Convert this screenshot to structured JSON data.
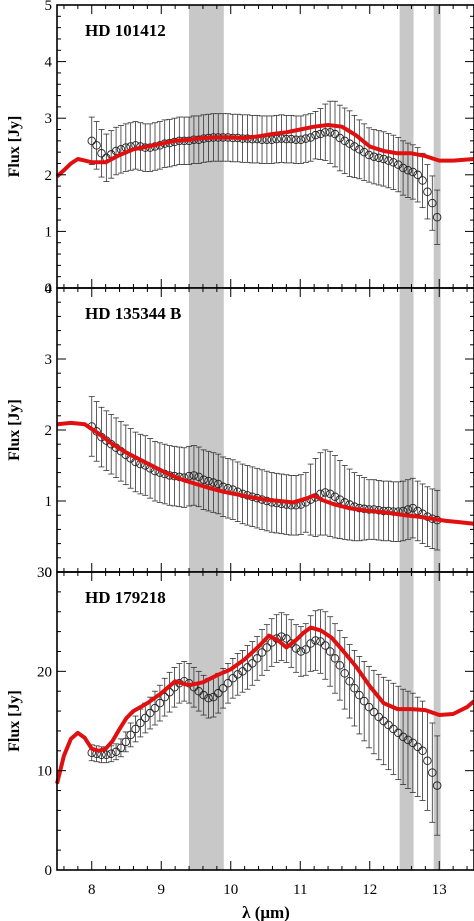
{
  "xlabel": "λ (μm)",
  "chart_data": [
    {
      "type": "line",
      "title": "HD 101412",
      "ylabel": "Flux [Jy]",
      "xlim": [
        7.5,
        13.5
      ],
      "ylim": [
        0,
        5
      ],
      "xticks": [
        "8",
        "9",
        "10",
        "11",
        "12",
        "13"
      ],
      "yticks": [
        "0",
        "1",
        "2",
        "3",
        "4",
        "5"
      ],
      "shaded_bands": [
        [
          9.4,
          9.9
        ],
        [
          12.43,
          12.63
        ],
        [
          12.92,
          13.02
        ]
      ],
      "model": {
        "color": "#e01010",
        "x": [
          7.5,
          7.6,
          7.7,
          7.8,
          7.9,
          8.0,
          8.2,
          8.4,
          8.6,
          8.8,
          9.0,
          9.2,
          9.4,
          9.6,
          9.8,
          10.0,
          10.2,
          10.4,
          10.6,
          10.8,
          11.0,
          11.2,
          11.4,
          11.6,
          11.8,
          12.0,
          12.2,
          12.4,
          12.6,
          12.8,
          13.0,
          13.2,
          13.5
        ],
        "y": [
          1.97,
          2.08,
          2.2,
          2.28,
          2.25,
          2.22,
          2.22,
          2.35,
          2.45,
          2.5,
          2.55,
          2.6,
          2.62,
          2.65,
          2.66,
          2.66,
          2.65,
          2.68,
          2.72,
          2.75,
          2.8,
          2.85,
          2.88,
          2.85,
          2.7,
          2.5,
          2.42,
          2.38,
          2.38,
          2.33,
          2.25,
          2.25,
          2.28
        ]
      },
      "observed": {
        "x": [
          8.0,
          8.07,
          8.14,
          8.21,
          8.28,
          8.35,
          8.42,
          8.49,
          8.56,
          8.63,
          8.7,
          8.77,
          8.84,
          8.91,
          8.98,
          9.05,
          9.12,
          9.19,
          9.26,
          9.33,
          9.4,
          9.47,
          9.54,
          9.61,
          9.68,
          9.75,
          9.82,
          9.89,
          9.96,
          10.03,
          10.1,
          10.17,
          10.24,
          10.31,
          10.38,
          10.45,
          10.52,
          10.59,
          10.66,
          10.73,
          10.8,
          10.87,
          10.94,
          11.01,
          11.08,
          11.15,
          11.22,
          11.29,
          11.36,
          11.43,
          11.5,
          11.57,
          11.64,
          11.71,
          11.78,
          11.85,
          11.92,
          11.99,
          12.06,
          12.13,
          12.2,
          12.27,
          12.34,
          12.41,
          12.48,
          12.55,
          12.62,
          12.69,
          12.76,
          12.83,
          12.9,
          12.97
        ],
        "y": [
          2.6,
          2.52,
          2.38,
          2.3,
          2.36,
          2.42,
          2.45,
          2.48,
          2.5,
          2.52,
          2.5,
          2.48,
          2.48,
          2.5,
          2.52,
          2.55,
          2.56,
          2.58,
          2.6,
          2.6,
          2.6,
          2.62,
          2.62,
          2.64,
          2.65,
          2.66,
          2.66,
          2.66,
          2.66,
          2.65,
          2.65,
          2.64,
          2.64,
          2.63,
          2.63,
          2.62,
          2.62,
          2.62,
          2.63,
          2.64,
          2.63,
          2.63,
          2.62,
          2.62,
          2.64,
          2.66,
          2.7,
          2.72,
          2.75,
          2.75,
          2.72,
          2.65,
          2.6,
          2.55,
          2.5,
          2.45,
          2.4,
          2.35,
          2.32,
          2.3,
          2.28,
          2.25,
          2.22,
          2.18,
          2.12,
          2.08,
          2.05,
          2.0,
          1.9,
          1.7,
          1.5,
          1.25
        ],
        "yerr": [
          0.42,
          0.42,
          0.42,
          0.42,
          0.42,
          0.42,
          0.42,
          0.42,
          0.42,
          0.42,
          0.42,
          0.42,
          0.42,
          0.42,
          0.42,
          0.42,
          0.42,
          0.42,
          0.42,
          0.42,
          0.42,
          0.42,
          0.42,
          0.42,
          0.42,
          0.42,
          0.42,
          0.42,
          0.42,
          0.42,
          0.42,
          0.42,
          0.42,
          0.42,
          0.42,
          0.42,
          0.42,
          0.42,
          0.42,
          0.42,
          0.42,
          0.42,
          0.42,
          0.42,
          0.42,
          0.42,
          0.42,
          0.45,
          0.5,
          0.55,
          0.58,
          0.58,
          0.58,
          0.58,
          0.55,
          0.52,
          0.5,
          0.48,
          0.48,
          0.48,
          0.48,
          0.48,
          0.48,
          0.48,
          0.48,
          0.48,
          0.48,
          0.48,
          0.48,
          0.48,
          0.48,
          0.48
        ]
      }
    },
    {
      "type": "line",
      "title": "HD 135344 B",
      "ylabel": "Flux [Jy]",
      "xlim": [
        7.5,
        13.5
      ],
      "ylim": [
        0,
        4
      ],
      "xticks": [
        "8",
        "9",
        "10",
        "11",
        "12",
        "13"
      ],
      "yticks": [
        "0",
        "1",
        "2",
        "3",
        "4"
      ],
      "shaded_bands": [
        [
          9.4,
          9.9
        ],
        [
          12.43,
          12.63
        ],
        [
          12.92,
          13.02
        ]
      ],
      "model": {
        "color": "#e01010",
        "x": [
          7.5,
          7.7,
          7.9,
          8.1,
          8.3,
          8.5,
          8.7,
          8.9,
          9.1,
          9.3,
          9.5,
          9.7,
          9.9,
          10.1,
          10.3,
          10.5,
          10.7,
          10.9,
          11.1,
          11.2,
          11.3,
          11.5,
          11.7,
          11.9,
          12.1,
          12.3,
          12.5,
          12.7,
          12.9,
          13.1,
          13.3,
          13.5
        ],
        "y": [
          2.08,
          2.1,
          2.08,
          1.95,
          1.8,
          1.68,
          1.58,
          1.48,
          1.38,
          1.3,
          1.24,
          1.18,
          1.13,
          1.09,
          1.05,
          1.02,
          1.0,
          0.98,
          1.04,
          1.08,
          1.02,
          0.95,
          0.9,
          0.87,
          0.85,
          0.83,
          0.8,
          0.78,
          0.75,
          0.72,
          0.7,
          0.68
        ]
      },
      "observed": {
        "x": [
          8.0,
          8.07,
          8.14,
          8.21,
          8.28,
          8.35,
          8.42,
          8.49,
          8.56,
          8.63,
          8.7,
          8.77,
          8.84,
          8.91,
          8.98,
          9.05,
          9.12,
          9.19,
          9.26,
          9.33,
          9.4,
          9.47,
          9.54,
          9.61,
          9.68,
          9.75,
          9.82,
          9.89,
          9.96,
          10.03,
          10.1,
          10.17,
          10.24,
          10.31,
          10.38,
          10.45,
          10.52,
          10.59,
          10.66,
          10.73,
          10.8,
          10.87,
          10.94,
          11.01,
          11.08,
          11.15,
          11.22,
          11.29,
          11.36,
          11.43,
          11.5,
          11.57,
          11.64,
          11.71,
          11.78,
          11.85,
          11.92,
          11.99,
          12.06,
          12.13,
          12.2,
          12.27,
          12.34,
          12.41,
          12.48,
          12.55,
          12.62,
          12.69,
          12.76,
          12.83,
          12.9,
          12.97
        ],
        "y": [
          2.05,
          1.98,
          1.9,
          1.85,
          1.8,
          1.75,
          1.7,
          1.65,
          1.6,
          1.55,
          1.52,
          1.5,
          1.46,
          1.42,
          1.4,
          1.38,
          1.36,
          1.35,
          1.34,
          1.33,
          1.35,
          1.36,
          1.34,
          1.3,
          1.28,
          1.26,
          1.24,
          1.2,
          1.18,
          1.16,
          1.13,
          1.1,
          1.08,
          1.06,
          1.04,
          1.02,
          1.0,
          0.98,
          0.97,
          0.96,
          0.95,
          0.94,
          0.94,
          0.95,
          0.98,
          1.02,
          1.05,
          1.1,
          1.12,
          1.1,
          1.06,
          1.02,
          0.98,
          0.95,
          0.92,
          0.9,
          0.89,
          0.88,
          0.88,
          0.87,
          0.86,
          0.86,
          0.85,
          0.85,
          0.86,
          0.88,
          0.9,
          0.86,
          0.82,
          0.78,
          0.75,
          0.73
        ],
        "yerr": [
          0.42,
          0.42,
          0.42,
          0.42,
          0.42,
          0.42,
          0.42,
          0.42,
          0.42,
          0.42,
          0.42,
          0.42,
          0.42,
          0.42,
          0.42,
          0.42,
          0.42,
          0.42,
          0.42,
          0.42,
          0.42,
          0.42,
          0.42,
          0.42,
          0.42,
          0.42,
          0.42,
          0.42,
          0.42,
          0.42,
          0.42,
          0.42,
          0.42,
          0.42,
          0.42,
          0.42,
          0.42,
          0.42,
          0.42,
          0.42,
          0.42,
          0.42,
          0.42,
          0.42,
          0.42,
          0.5,
          0.55,
          0.58,
          0.6,
          0.6,
          0.58,
          0.55,
          0.52,
          0.5,
          0.48,
          0.46,
          0.44,
          0.42,
          0.42,
          0.42,
          0.42,
          0.42,
          0.42,
          0.42,
          0.42,
          0.42,
          0.42,
          0.42,
          0.42,
          0.42,
          0.42,
          0.42
        ]
      }
    },
    {
      "type": "line",
      "title": "HD 179218",
      "ylabel": "Flux [Jy]",
      "xlim": [
        7.5,
        13.5
      ],
      "ylim": [
        0,
        30
      ],
      "xticks": [
        "8",
        "9",
        "10",
        "11",
        "12",
        "13"
      ],
      "yticks": [
        "0",
        "10",
        "20",
        "30"
      ],
      "shaded_bands": [
        [
          9.4,
          9.9
        ],
        [
          12.43,
          12.63
        ],
        [
          12.92,
          13.02
        ]
      ],
      "model": {
        "color": "#e01010",
        "x": [
          7.5,
          7.6,
          7.7,
          7.8,
          7.9,
          8.0,
          8.1,
          8.2,
          8.3,
          8.4,
          8.5,
          8.6,
          8.7,
          8.8,
          9.0,
          9.2,
          9.4,
          9.6,
          9.8,
          10.0,
          10.2,
          10.4,
          10.55,
          10.7,
          10.8,
          10.95,
          11.05,
          11.15,
          11.3,
          11.45,
          11.6,
          11.8,
          12.0,
          12.2,
          12.4,
          12.6,
          12.8,
          13.0,
          13.2,
          13.4,
          13.5
        ],
        "y": [
          8.7,
          11.5,
          13.2,
          13.8,
          13.3,
          12.2,
          12.0,
          12.2,
          13.0,
          14.2,
          15.3,
          16.0,
          16.4,
          16.8,
          17.8,
          19.0,
          18.6,
          18.9,
          19.6,
          20.2,
          21.2,
          22.5,
          23.6,
          23.0,
          22.4,
          23.2,
          23.9,
          24.4,
          24.1,
          23.4,
          22.2,
          20.5,
          18.5,
          16.8,
          16.2,
          16.2,
          16.1,
          15.6,
          15.7,
          16.4,
          17.0
        ]
      },
      "observed": {
        "x": [
          8.0,
          8.07,
          8.14,
          8.21,
          8.28,
          8.35,
          8.42,
          8.49,
          8.56,
          8.63,
          8.7,
          8.77,
          8.84,
          8.91,
          8.98,
          9.05,
          9.12,
          9.19,
          9.26,
          9.33,
          9.4,
          9.47,
          9.54,
          9.61,
          9.68,
          9.75,
          9.82,
          9.89,
          9.96,
          10.03,
          10.1,
          10.17,
          10.24,
          10.31,
          10.38,
          10.45,
          10.52,
          10.59,
          10.66,
          10.73,
          10.8,
          10.87,
          10.94,
          11.01,
          11.08,
          11.15,
          11.22,
          11.29,
          11.36,
          11.43,
          11.5,
          11.57,
          11.64,
          11.71,
          11.78,
          11.85,
          11.92,
          11.99,
          12.06,
          12.13,
          12.2,
          12.27,
          12.34,
          12.41,
          12.48,
          12.55,
          12.62,
          12.69,
          12.76,
          12.83,
          12.9,
          12.97
        ],
        "y": [
          11.8,
          11.7,
          11.6,
          11.6,
          11.7,
          11.9,
          12.3,
          12.9,
          13.6,
          14.2,
          14.8,
          15.3,
          15.8,
          16.3,
          16.8,
          17.4,
          17.9,
          18.4,
          18.8,
          19.0,
          18.8,
          18.4,
          18.0,
          17.6,
          17.3,
          17.4,
          17.8,
          18.3,
          18.8,
          19.3,
          19.7,
          20.0,
          20.4,
          20.8,
          21.3,
          21.9,
          22.4,
          22.9,
          23.3,
          23.5,
          23.3,
          22.8,
          22.3,
          22.0,
          22.2,
          22.8,
          23.1,
          23.0,
          22.6,
          22.0,
          21.3,
          20.6,
          19.8,
          19.0,
          18.3,
          17.6,
          17.0,
          16.4,
          15.9,
          15.4,
          15.0,
          14.6,
          14.2,
          13.8,
          13.4,
          13.1,
          12.8,
          12.4,
          12.0,
          11.0,
          9.8,
          8.5
        ],
        "yerr": [
          0.8,
          0.8,
          0.8,
          0.8,
          0.8,
          0.8,
          0.9,
          1.0,
          1.2,
          1.3,
          1.4,
          1.5,
          1.6,
          1.7,
          1.8,
          1.9,
          2.0,
          2.0,
          2.0,
          2.0,
          2.0,
          2.0,
          2.0,
          2.0,
          2.0,
          2.0,
          2.0,
          2.0,
          2.0,
          2.0,
          2.1,
          2.1,
          2.2,
          2.2,
          2.2,
          2.3,
          2.3,
          2.4,
          2.4,
          2.4,
          2.4,
          2.4,
          2.4,
          2.5,
          2.6,
          2.8,
          3.0,
          3.2,
          3.4,
          3.5,
          3.5,
          3.5,
          3.6,
          3.7,
          3.8,
          3.9,
          4.0,
          4.1,
          4.2,
          4.3,
          4.4,
          4.5,
          4.6,
          4.7,
          4.8,
          4.9,
          5.0,
          5.0,
          5.0,
          5.0,
          5.0,
          5.0
        ]
      }
    }
  ]
}
